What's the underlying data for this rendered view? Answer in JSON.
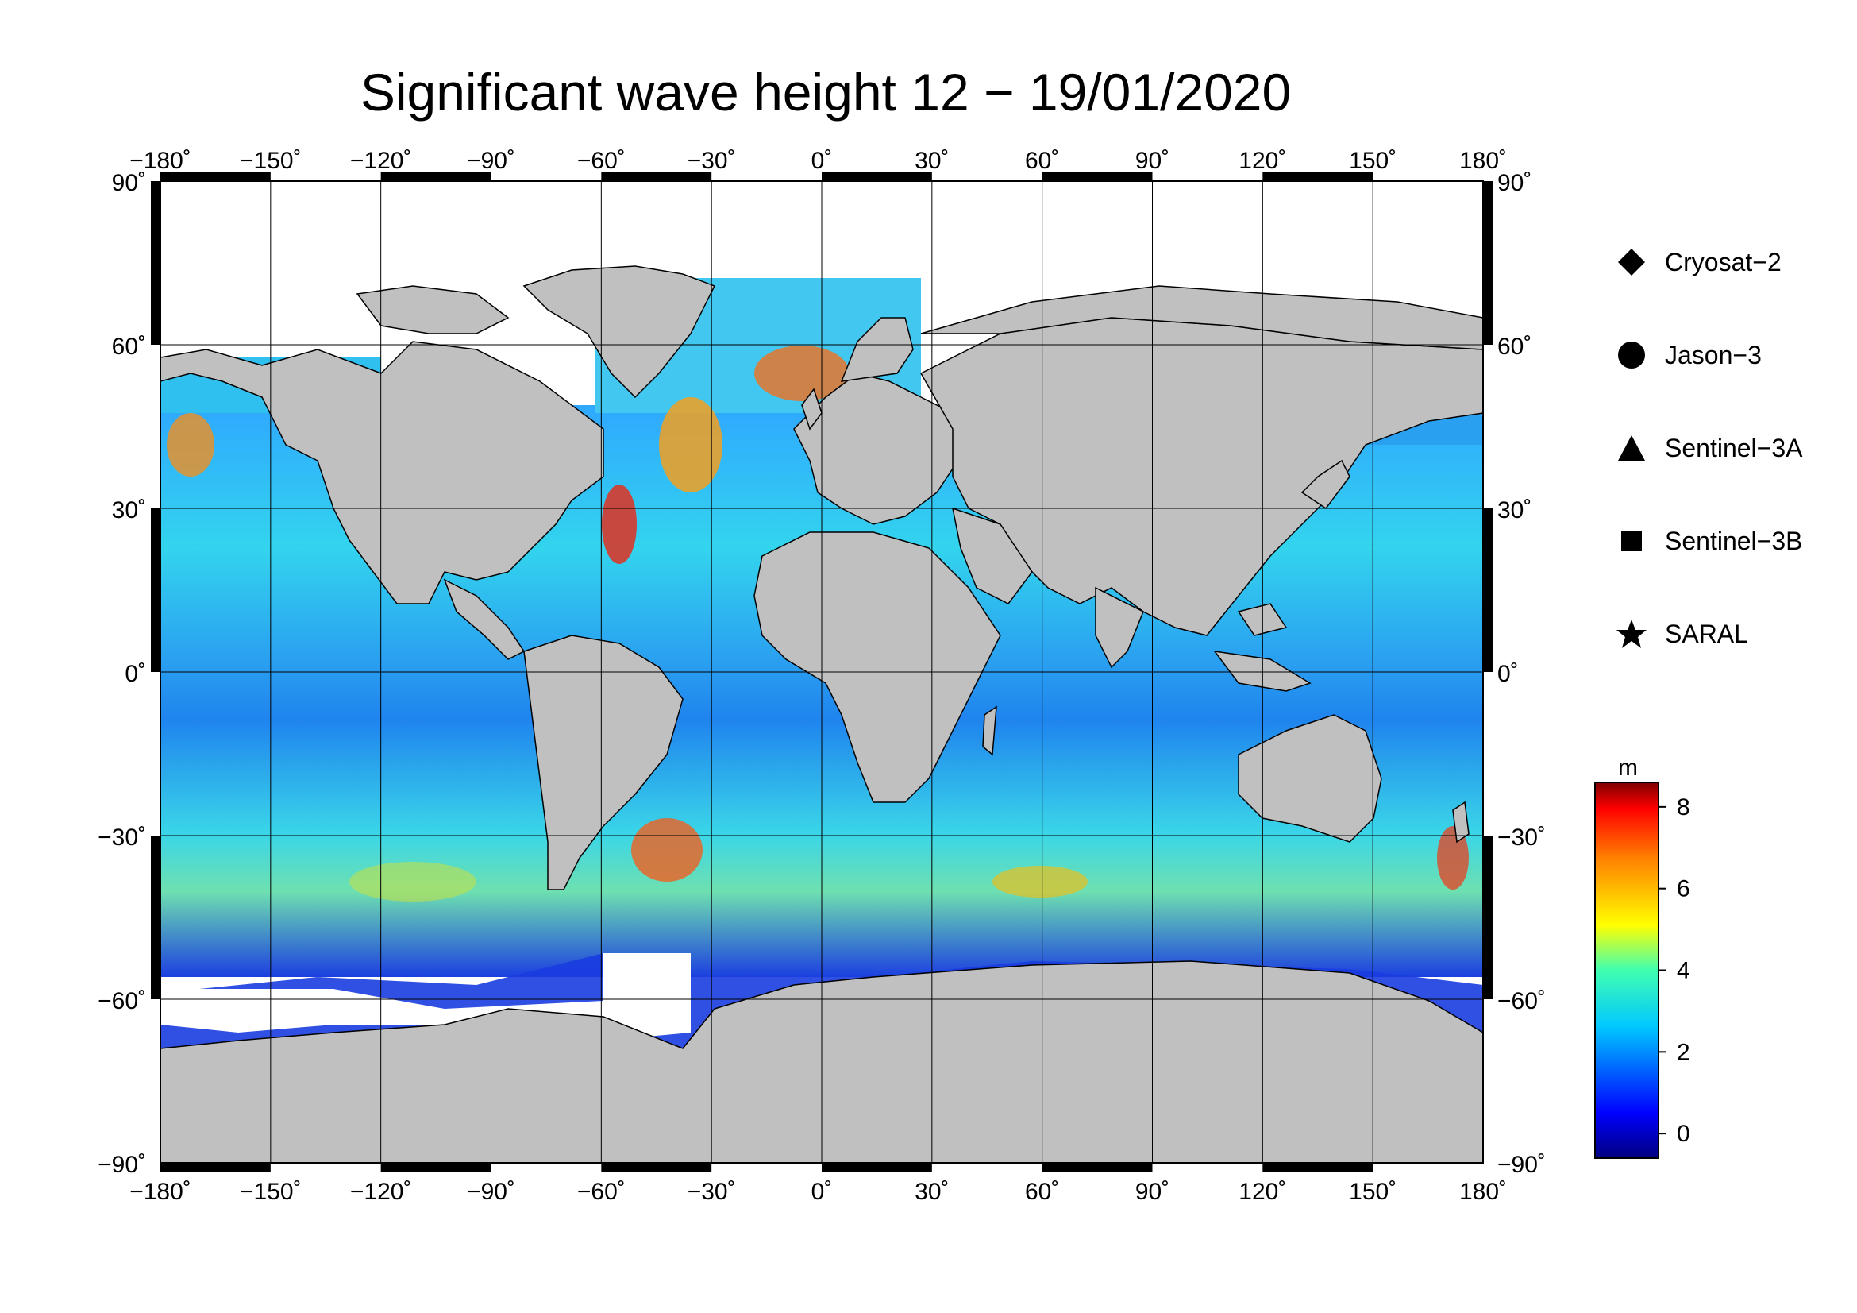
{
  "title": "Significant wave height 12 − 19/01/2020",
  "lon_ticks": [
    "−180˚",
    "−150˚",
    "−120˚",
    "−90˚",
    "−60˚",
    "−30˚",
    "0˚",
    "30˚",
    "60˚",
    "90˚",
    "120˚",
    "150˚",
    "180˚"
  ],
  "lat_ticks": [
    "90˚",
    "60˚",
    "30˚",
    "0˚",
    "−30˚",
    "−60˚",
    "−90˚"
  ],
  "legend": [
    {
      "label": "Cryosat−2",
      "icon": "diamond-icon"
    },
    {
      "label": "Jason−3",
      "icon": "circle-icon"
    },
    {
      "label": "Sentinel−3A",
      "icon": "triangle-icon"
    },
    {
      "label": "Sentinel−3B",
      "icon": "square-icon"
    },
    {
      "label": "SARAL",
      "icon": "star-icon"
    }
  ],
  "colorbar": {
    "unit": "m",
    "ticks": [
      "8",
      "6",
      "4",
      "2",
      "0"
    ],
    "range": [
      -0.6,
      8.6
    ]
  },
  "colors": {
    "land": "#c0c0c0",
    "ocean_low": "#0a1fd8",
    "ocean_mid": "#2fd6f0",
    "ocean_high": "#d81818",
    "frame": "#000000"
  },
  "map_extent": {
    "lon": [
      -180,
      180
    ],
    "lat": [
      -90,
      90
    ]
  }
}
